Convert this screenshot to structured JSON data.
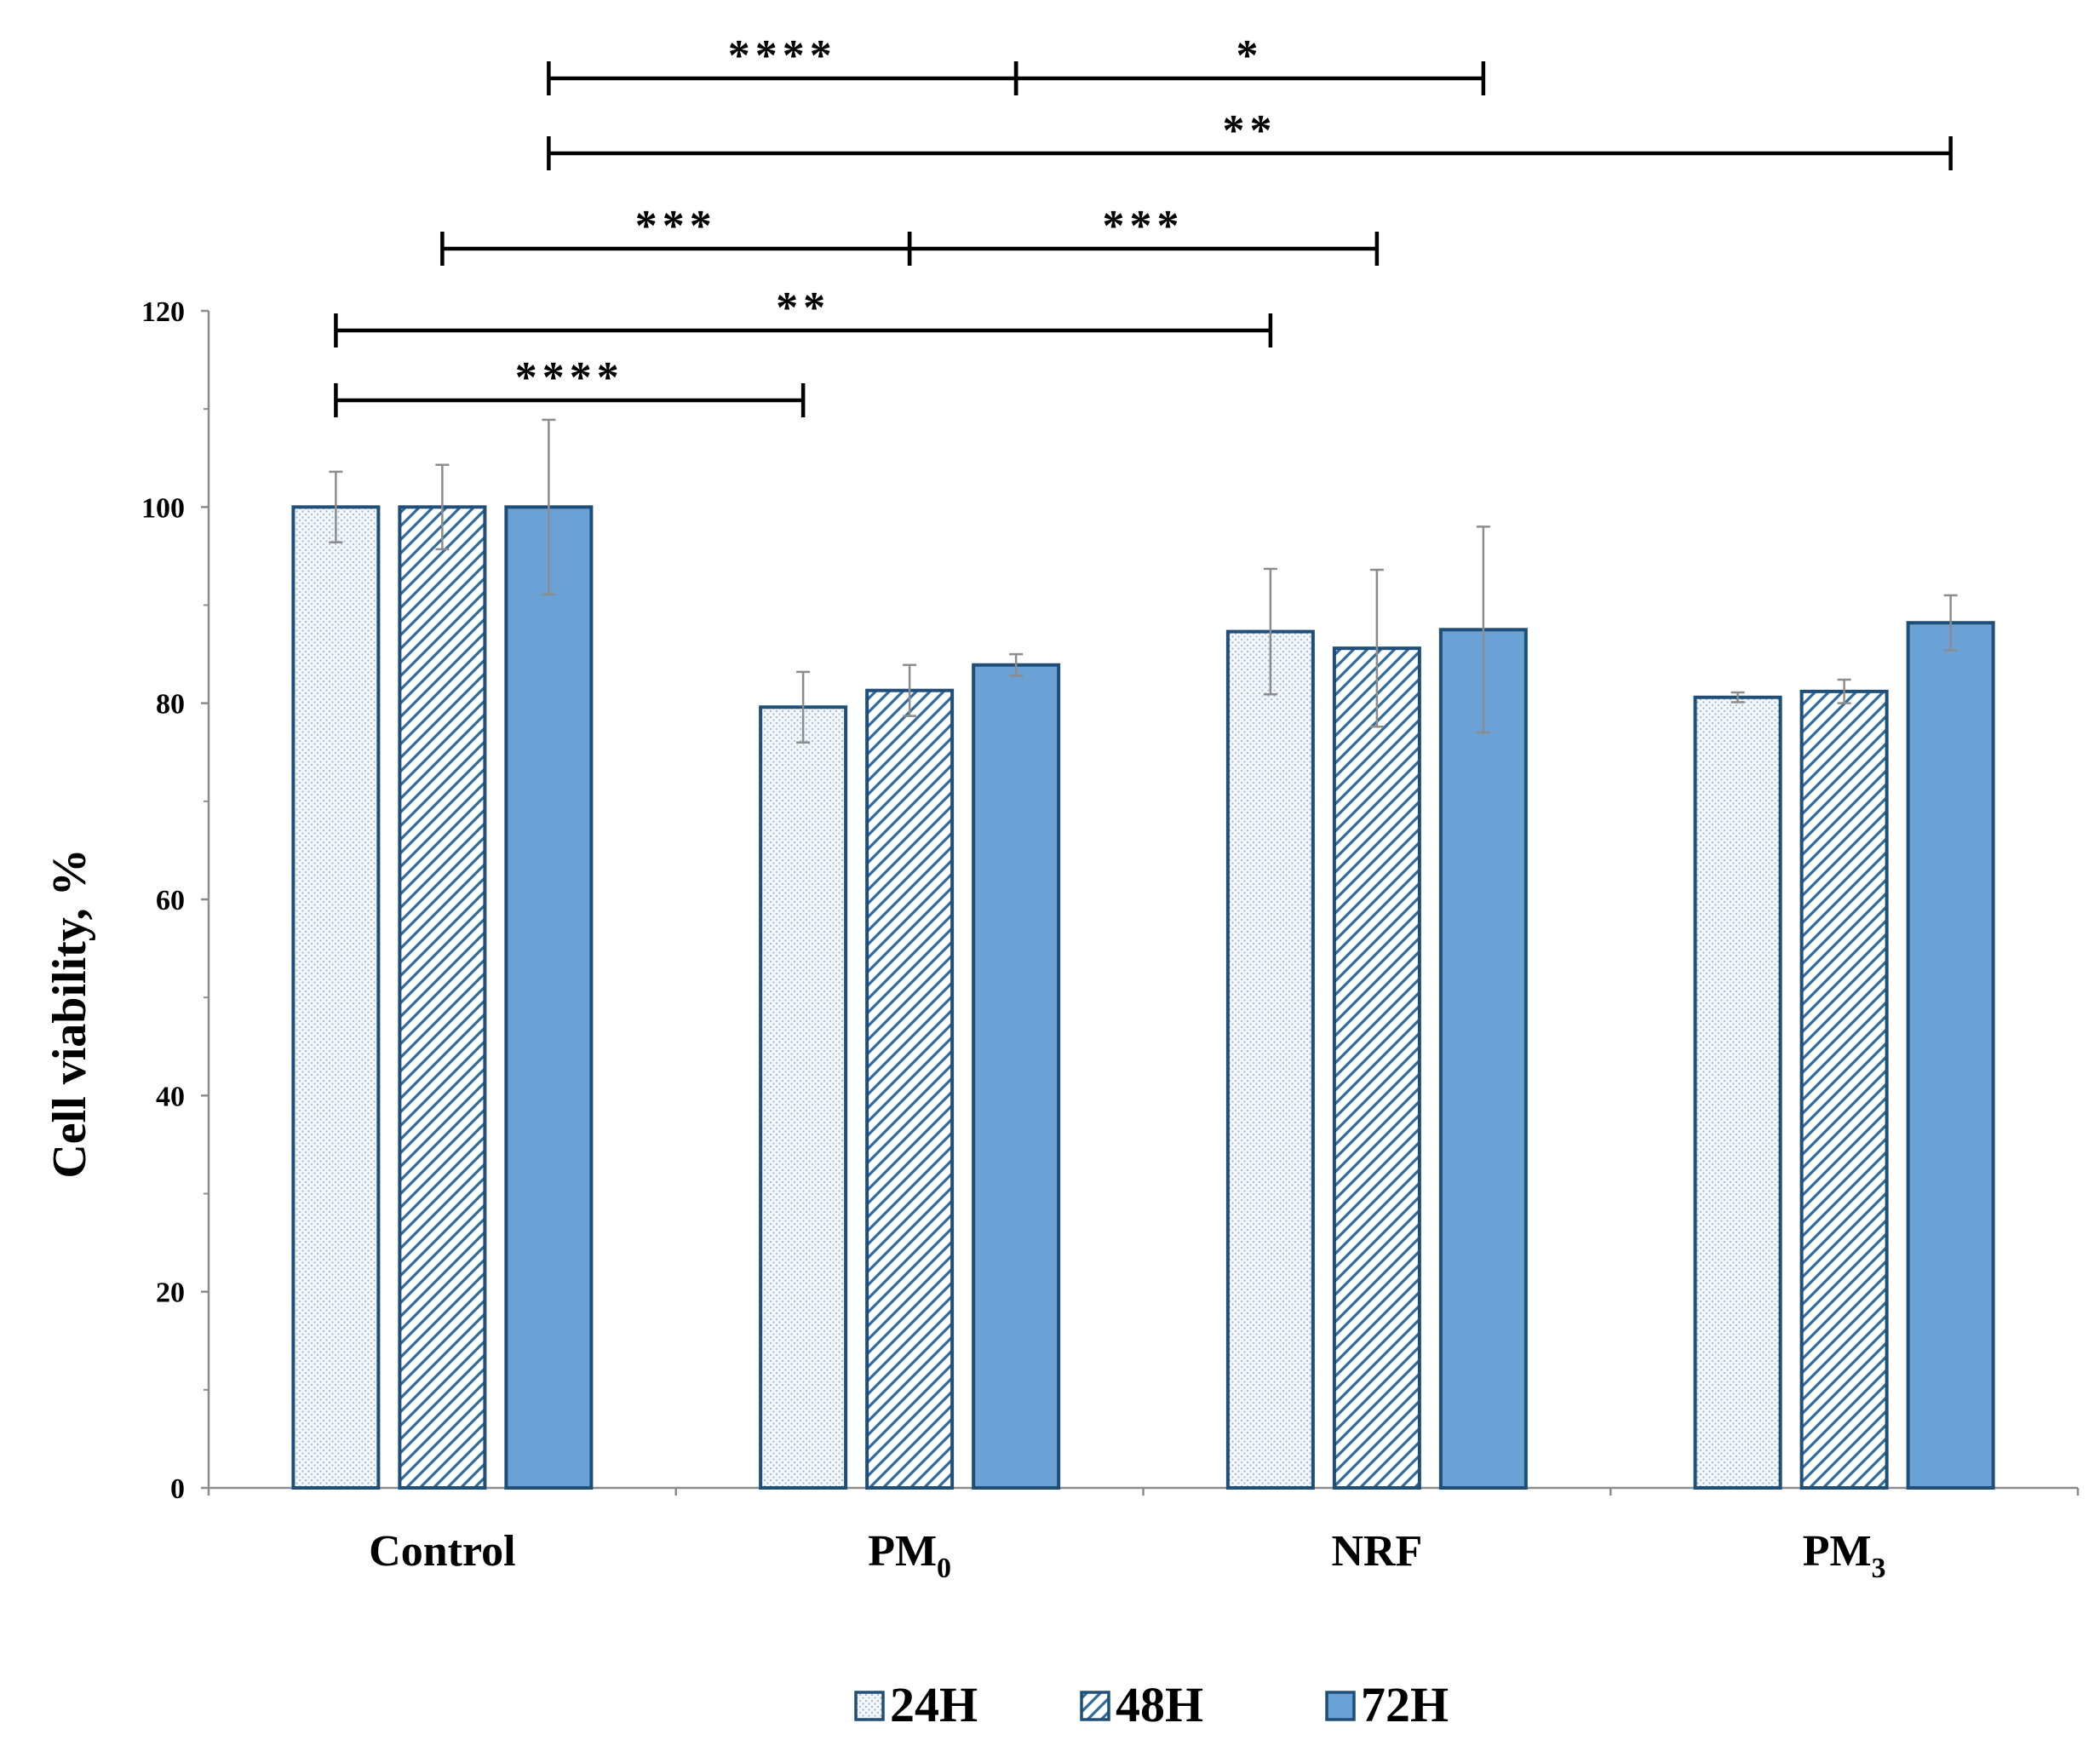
{
  "chart_data": {
    "type": "bar",
    "title": "",
    "xlabel": "",
    "ylabel": "Cell viability, %",
    "ylim": [
      0,
      120
    ],
    "yticks": [
      0,
      20,
      40,
      60,
      80,
      100,
      120
    ],
    "grid": false,
    "legend_position": "bottom",
    "categories": [
      {
        "label": "Control",
        "base": "Control",
        "subscript": ""
      },
      {
        "label": "PM0",
        "base": "PM",
        "subscript": "0"
      },
      {
        "label": "NRF",
        "base": "NRF",
        "subscript": ""
      },
      {
        "label": "PM3",
        "base": "PM",
        "subscript": "3"
      }
    ],
    "series": [
      {
        "name": "24H",
        "pattern": "dots",
        "values": [
          100,
          79.6,
          87.3,
          80.6
        ],
        "errors": [
          3.6,
          3.6,
          6.4,
          0.5
        ]
      },
      {
        "name": "48H",
        "pattern": "hatch",
        "values": [
          100,
          81.3,
          85.6,
          81.2
        ],
        "errors": [
          4.3,
          2.6,
          8.0,
          1.2
        ]
      },
      {
        "name": "72H",
        "pattern": "solid",
        "values": [
          100,
          83.9,
          87.5,
          88.2
        ],
        "errors": [
          8.9,
          1.1,
          10.5,
          2.8
        ]
      }
    ],
    "significance": [
      {
        "label": "****",
        "from": {
          "category": 0,
          "series": 0
        },
        "to": {
          "category": 1,
          "series": 0
        },
        "level": 1
      },
      {
        "label": "**",
        "from": {
          "category": 0,
          "series": 0
        },
        "to": {
          "category": 2,
          "series": 0
        },
        "level": 2
      },
      {
        "label": "***",
        "from": {
          "category": 0,
          "series": 1
        },
        "to": {
          "category": 1,
          "series": 1
        },
        "level": 3
      },
      {
        "label": "***",
        "from": {
          "category": 1,
          "series": 1
        },
        "to": {
          "category": 2,
          "series": 1
        },
        "level": 3
      },
      {
        "label": "**",
        "from": {
          "category": 0,
          "series": 2
        },
        "to": {
          "category": 3,
          "series": 2
        },
        "level": 4
      },
      {
        "label": "****",
        "from": {
          "category": 0,
          "series": 2
        },
        "to": {
          "category": 1,
          "series": 2
        },
        "level": 5
      },
      {
        "label": "*",
        "from": {
          "category": 1,
          "series": 2
        },
        "to": {
          "category": 2,
          "series": 2
        },
        "level": 5
      }
    ],
    "colors": {
      "outline": "#1f4e79",
      "solid_fill": "#6aa2d6",
      "dot_fill": "#f3f7fb",
      "dot_color": "#9fb8d0",
      "hatch_color": "#2f6aa0",
      "error_bar": "#8c8c8c",
      "axis": "#8c8c8c"
    }
  }
}
